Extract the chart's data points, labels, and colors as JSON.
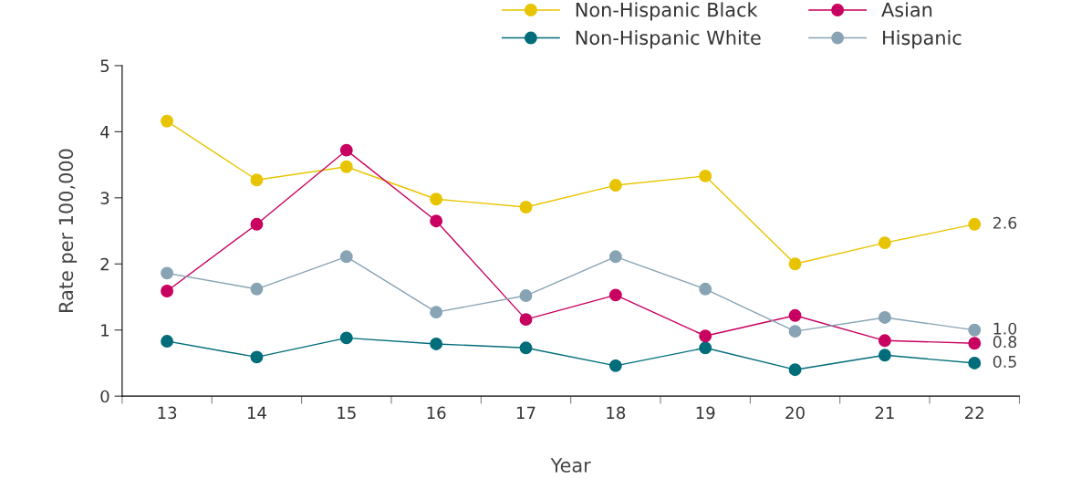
{
  "chart_data": {
    "type": "line",
    "xlabel": "Year",
    "ylabel": "Rate per 100,000",
    "categories": [
      "13",
      "14",
      "15",
      "16",
      "17",
      "18",
      "19",
      "20",
      "21",
      "22"
    ],
    "ylim": [
      0,
      5
    ],
    "yticks": [
      0,
      1,
      2,
      3,
      4,
      5
    ],
    "grid": false,
    "legend": "top",
    "marker": "circle",
    "line_style": "solid",
    "series": [
      {
        "name": "Non-Hispanic Black",
        "color": "#e8c400",
        "values": [
          4.16,
          3.27,
          3.47,
          2.98,
          2.86,
          3.19,
          3.33,
          2.0,
          2.32,
          2.6
        ],
        "value_labels": [
          null,
          null,
          null,
          null,
          null,
          null,
          null,
          null,
          null,
          "2.6"
        ]
      },
      {
        "name": "Non-Hispanic White",
        "color": "#006d7a",
        "values": [
          0.83,
          0.59,
          0.88,
          0.79,
          0.73,
          0.46,
          0.73,
          0.4,
          0.62,
          0.5
        ],
        "value_labels": [
          null,
          null,
          null,
          null,
          null,
          null,
          null,
          null,
          null,
          "0.5"
        ]
      },
      {
        "name": "Asian",
        "color": "#c8005f",
        "values": [
          1.59,
          2.6,
          3.72,
          2.65,
          1.16,
          1.53,
          0.91,
          1.22,
          0.84,
          0.8
        ],
        "value_labels": [
          null,
          null,
          null,
          null,
          null,
          null,
          null,
          null,
          null,
          "0.8"
        ]
      },
      {
        "name": "Hispanic",
        "color": "#88a4b4",
        "values": [
          1.86,
          1.62,
          2.11,
          1.27,
          1.52,
          2.11,
          1.62,
          0.98,
          1.19,
          1.0
        ],
        "value_labels": [
          null,
          null,
          null,
          null,
          null,
          null,
          null,
          null,
          null,
          "1.0"
        ]
      }
    ]
  }
}
